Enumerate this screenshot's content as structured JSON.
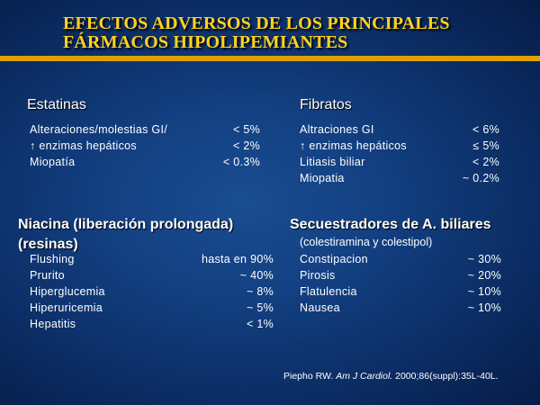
{
  "title": {
    "line1": "Efectos adversos de los principales",
    "line2": "fármacos hipolipemiantes"
  },
  "colors": {
    "title": "#ffd21f",
    "rule": "#e0a000",
    "background": "#123f80"
  },
  "sections": {
    "estatinas": {
      "heading": "Estatinas",
      "rows": [
        {
          "label": "Alteraciones/molestias GI/",
          "value": "< 5%"
        },
        {
          "label": "↑ enzimas hepáticos",
          "value": "< 2%"
        },
        {
          "label": "Miopatía",
          "value": "< 0.3%"
        }
      ]
    },
    "fibratos": {
      "heading": "Fibratos",
      "rows": [
        {
          "label": "Altraciones GI",
          "value": "< 6%"
        },
        {
          "label": "↑ enzimas hepáticos",
          "value": "≤ 5%"
        },
        {
          "label": "Litiasis biliar",
          "value": "< 2%"
        },
        {
          "label": "Miopatia",
          "value": "~ 0.2%"
        }
      ]
    },
    "niacina": {
      "heading_line1": "Niacina (liberación prolongada)",
      "heading_line2": "(resinas)",
      "rows": [
        {
          "label": "Flushing",
          "value": "hasta en 90%"
        },
        {
          "label": "Prurito",
          "value": "~ 40%"
        },
        {
          "label": "Hiperglucemia",
          "value": "~ 8%"
        },
        {
          "label": "Hiperuricemia",
          "value": "~ 5%"
        },
        {
          "label": "Hepatitis",
          "value": "< 1%"
        }
      ]
    },
    "secuestradores": {
      "heading": "Secuestradores de A. biliares",
      "subheading": "(colestiramina y colestipol)",
      "rows": [
        {
          "label": "Constipacion",
          "value": "~ 30%"
        },
        {
          "label": "Pirosis",
          "value": "~ 20%"
        },
        {
          "label": "Flatulencia",
          "value": "~ 10%"
        },
        {
          "label": "Nausea",
          "value": "~ 10%"
        }
      ]
    }
  },
  "citation": {
    "author": "Piepho RW.",
    "journal": "Am J Cardiol.",
    "details": "2000;86(suppl):35L-40L."
  }
}
